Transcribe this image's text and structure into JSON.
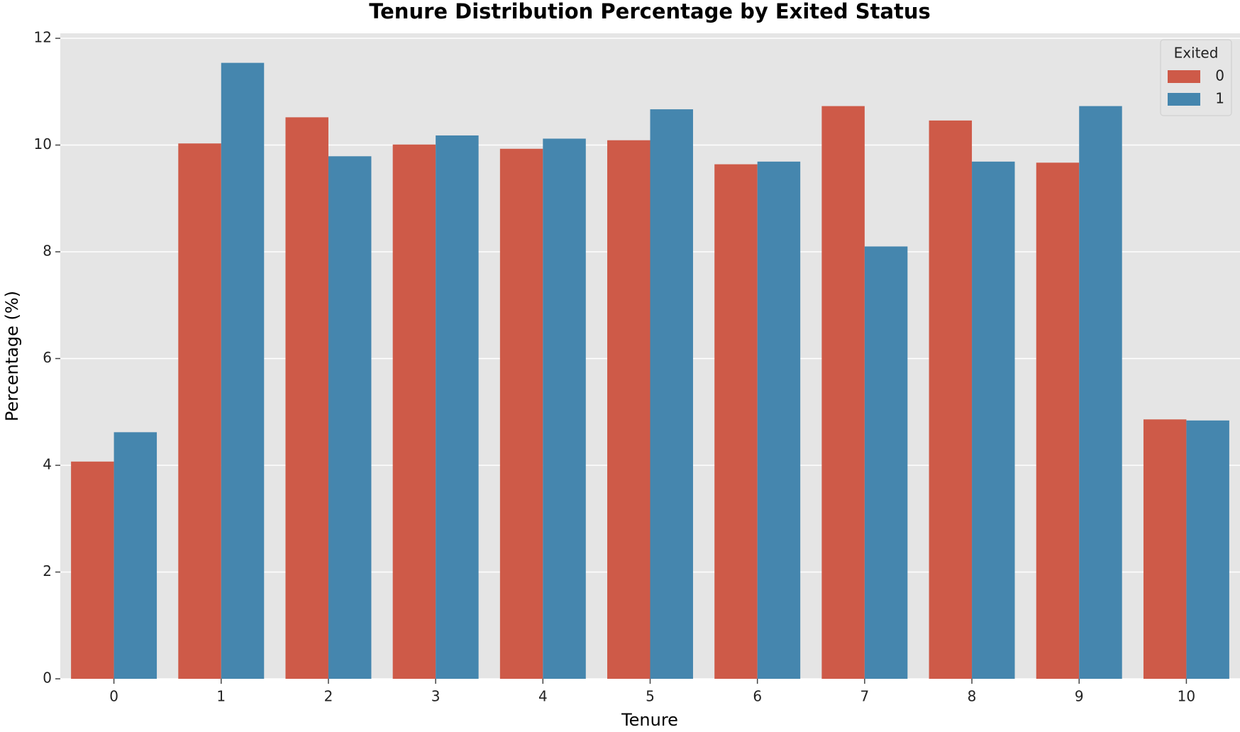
{
  "chart_data": {
    "type": "bar",
    "title": "Tenure Distribution Percentage by Exited Status",
    "x_label": "Tenure",
    "y_label": "Percentage (%)",
    "categories": [
      "0",
      "1",
      "2",
      "3",
      "4",
      "5",
      "6",
      "7",
      "8",
      "9",
      "10"
    ],
    "legend_title": "Exited",
    "legend_position": "upper right",
    "grid": true,
    "ylim": [
      0,
      12
    ],
    "yticks": [
      0,
      2,
      4,
      6,
      8,
      10,
      12
    ],
    "series": [
      {
        "name": "0",
        "color": "#ce5a48",
        "values": [
          4.07,
          10.03,
          10.52,
          10.01,
          9.93,
          10.09,
          9.64,
          10.73,
          10.46,
          9.67,
          4.86
        ]
      },
      {
        "name": "1",
        "color": "#4586ae",
        "values": [
          4.62,
          11.54,
          9.79,
          10.18,
          10.12,
          10.67,
          9.69,
          8.1,
          9.69,
          10.73,
          4.84
        ]
      }
    ]
  }
}
